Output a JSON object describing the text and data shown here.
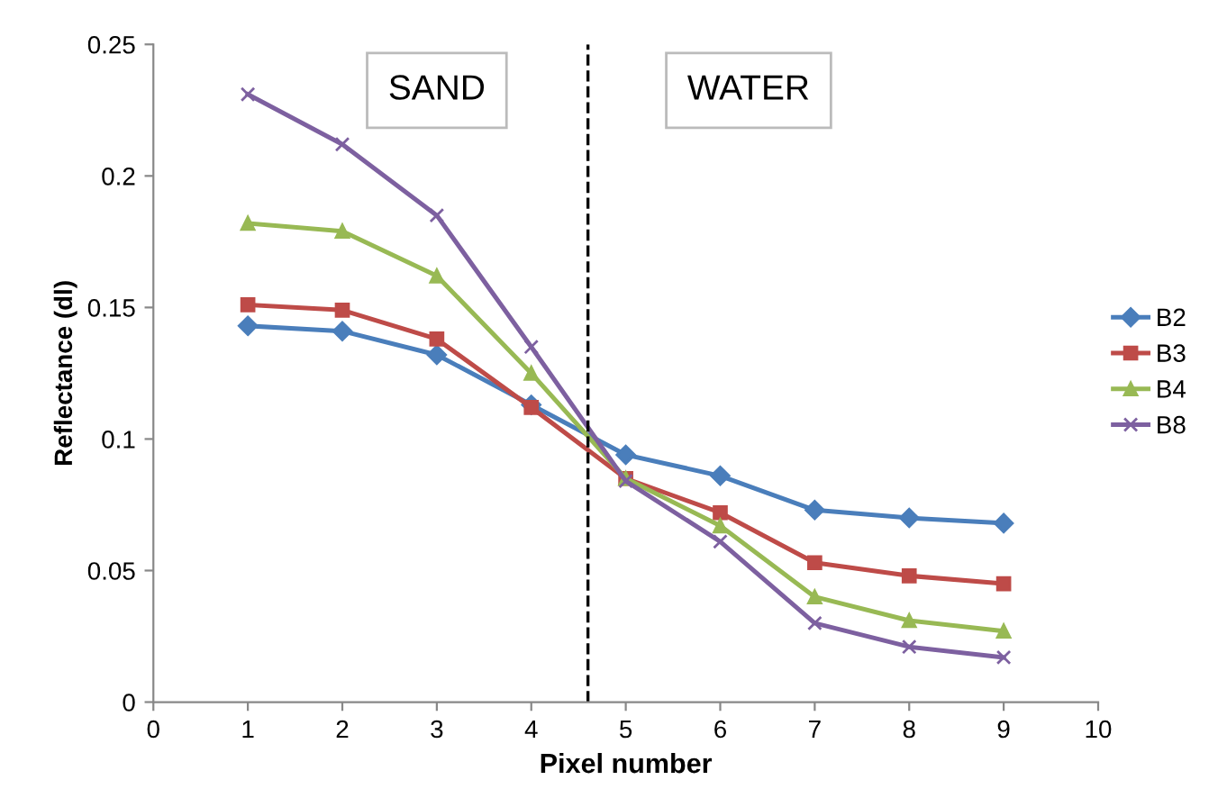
{
  "chart_data": {
    "type": "line",
    "xlabel": "Pixel number",
    "ylabel": "Reflectance (dl)",
    "x": [
      1,
      2,
      3,
      4,
      5,
      6,
      7,
      8,
      9
    ],
    "series": [
      {
        "name": "B2",
        "color": "#4a7ebb",
        "marker": "diamond",
        "values": [
          0.143,
          0.141,
          0.132,
          0.113,
          0.094,
          0.086,
          0.073,
          0.07,
          0.068
        ]
      },
      {
        "name": "B3",
        "color": "#be4b48",
        "marker": "square",
        "values": [
          0.151,
          0.149,
          0.138,
          0.112,
          0.085,
          0.072,
          0.053,
          0.048,
          0.045
        ]
      },
      {
        "name": "B4",
        "color": "#98b954",
        "marker": "triangle",
        "values": [
          0.182,
          0.179,
          0.162,
          0.125,
          0.085,
          0.067,
          0.04,
          0.031,
          0.027
        ]
      },
      {
        "name": "B8",
        "color": "#7d60a0",
        "marker": "cross",
        "values": [
          0.231,
          0.212,
          0.185,
          0.135,
          0.084,
          0.061,
          0.03,
          0.021,
          0.017
        ]
      }
    ],
    "xlim": [
      0,
      10
    ],
    "xticks": [
      0,
      1,
      2,
      3,
      4,
      5,
      6,
      7,
      8,
      9,
      10
    ],
    "ylim": [
      0,
      0.25
    ],
    "yticks": [
      {
        "value": 0,
        "label": "0"
      },
      0.05,
      0.1,
      0.15,
      0.2,
      0.25
    ],
    "ref_lines": [
      {
        "axis": "x",
        "value": 4.6,
        "label": null,
        "color": "#000000",
        "line_style": "dashed"
      }
    ],
    "annotations": [
      "SAND",
      "WATER"
    ],
    "grid": false,
    "legend": "right",
    "line_style": "solid"
  }
}
